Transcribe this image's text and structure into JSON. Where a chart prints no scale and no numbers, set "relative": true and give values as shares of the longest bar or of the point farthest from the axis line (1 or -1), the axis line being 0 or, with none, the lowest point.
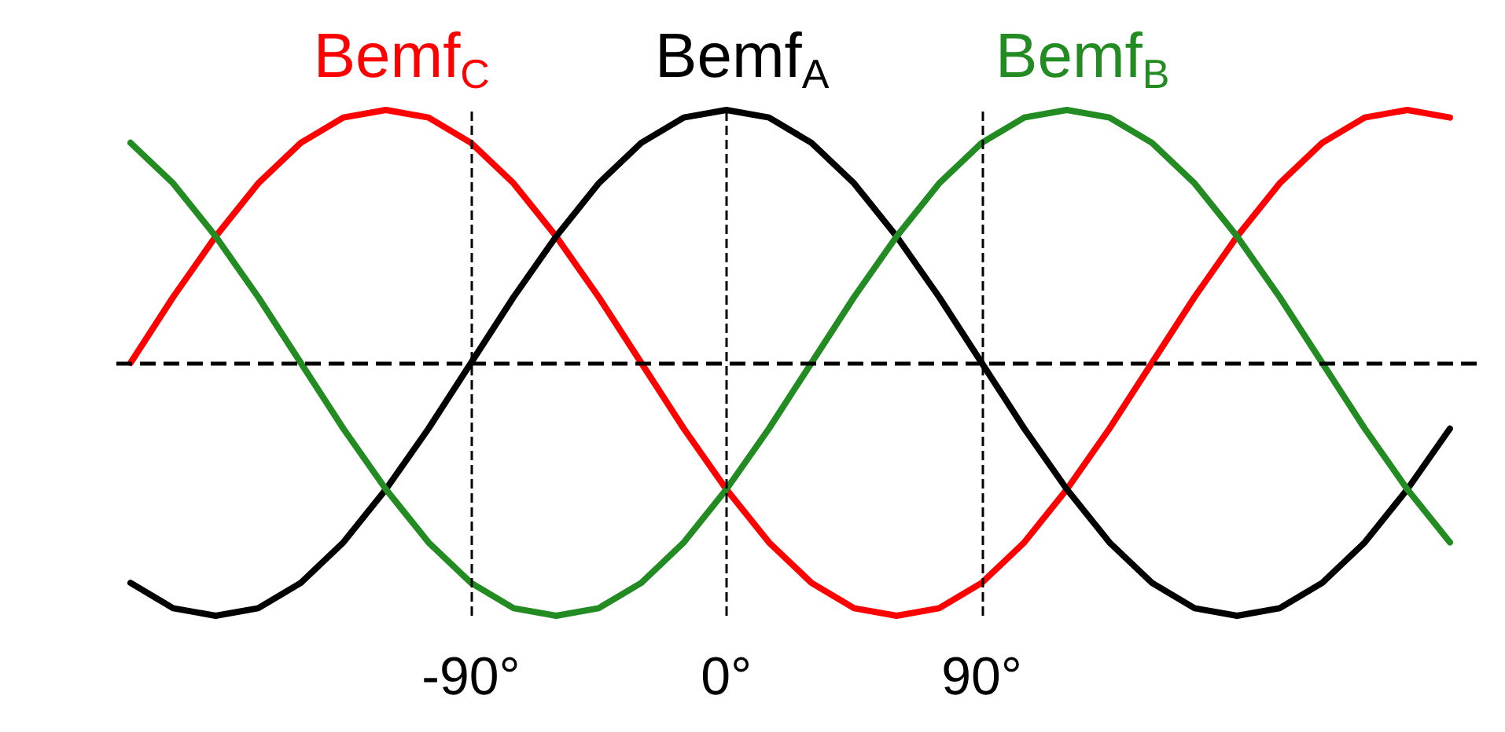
{
  "chart_data": {
    "type": "line",
    "relative": true,
    "x": [
      -210,
      -195,
      -180,
      -165,
      -150,
      -135,
      -120,
      -105,
      -90,
      -75,
      -60,
      -45,
      -30,
      -15,
      0,
      15,
      30,
      45,
      60,
      75,
      90,
      105,
      120,
      135,
      150,
      165,
      180,
      195,
      210,
      225,
      240,
      255
    ],
    "series": [
      {
        "name": "Bemf$_{C}$",
        "color": "#ff0000",
        "values": [
          0,
          0.26,
          0.5,
          0.71,
          0.87,
          0.97,
          1,
          0.97,
          0.87,
          0.71,
          0.5,
          0.26,
          0,
          -0.26,
          -0.5,
          -0.71,
          -0.87,
          -0.97,
          -1,
          -0.97,
          -0.87,
          -0.71,
          -0.5,
          -0.26,
          0,
          0.26,
          0.5,
          0.71,
          0.87,
          0.97,
          1,
          0.97
        ]
      },
      {
        "name": "Bemf$_{A}$",
        "color": "#000000",
        "values": [
          -0.87,
          -0.97,
          -1,
          -0.97,
          -0.87,
          -0.71,
          -0.5,
          -0.26,
          0,
          0.26,
          0.5,
          0.71,
          0.87,
          0.97,
          1,
          0.97,
          0.87,
          0.71,
          0.5,
          0.26,
          0,
          -0.26,
          -0.5,
          -0.71,
          -0.87,
          -0.97,
          -1,
          -0.97,
          -0.87,
          -0.71,
          -0.5,
          -0.26
        ]
      },
      {
        "name": "Bemf$_{B}$",
        "color": "#228b22",
        "values": [
          0.87,
          0.71,
          0.5,
          0.26,
          0,
          -0.26,
          -0.5,
          -0.71,
          -0.87,
          -0.97,
          -1,
          -0.97,
          -0.87,
          -0.71,
          -0.5,
          -0.26,
          0,
          0.26,
          0.5,
          0.71,
          0.87,
          0.97,
          1,
          0.97,
          0.87,
          0.71,
          0.5,
          0.26,
          0,
          -0.26,
          -0.5,
          -0.71
        ]
      }
    ],
    "xlim": [
      -215,
      265
    ],
    "xticks": [
      {
        "value": -90,
        "label": "-90°"
      },
      {
        "value": 0,
        "label": "0°"
      },
      {
        "value": 90,
        "label": "90°"
      }
    ],
    "tick_labels": "x",
    "grid": false,
    "legend": false,
    "marker": "none",
    "line_style": "solid",
    "ref_lines": [
      {
        "axis": "y",
        "value": 0,
        "color": "#000000",
        "line_style": "dashed"
      },
      {
        "axis": "x",
        "value": -90,
        "color": "#000000",
        "line_style": "dashed"
      },
      {
        "axis": "x",
        "value": 0,
        "color": "#000000",
        "line_style": "dashed"
      },
      {
        "axis": "x",
        "value": 90,
        "color": "#000000",
        "line_style": "dashed"
      }
    ]
  }
}
